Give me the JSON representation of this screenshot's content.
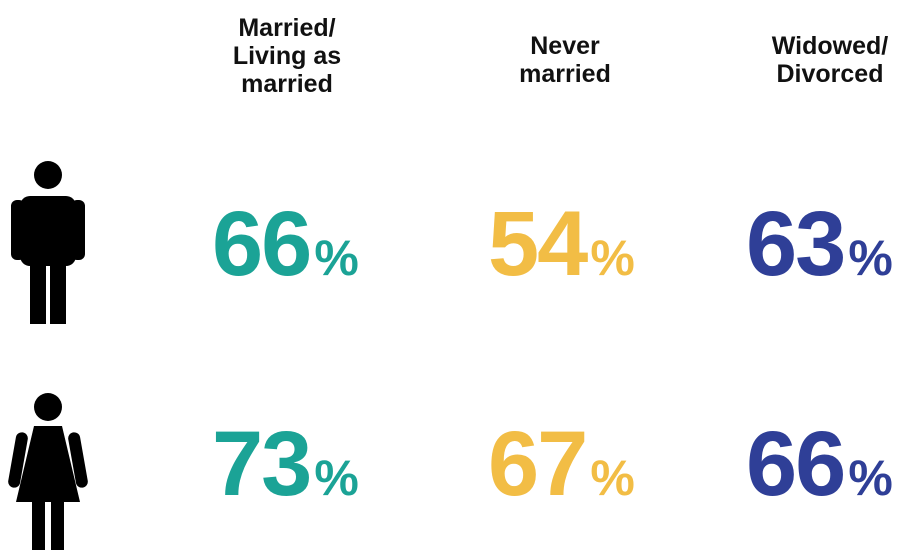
{
  "chart_data": {
    "type": "table",
    "columns": [
      {
        "label": "Married/\nLiving as\nmarried",
        "color": "#1ba396"
      },
      {
        "label": "Never\nmarried",
        "color": "#f2bd45"
      },
      {
        "label": "Widowed/\nDivorced",
        "color": "#2f3f97"
      }
    ],
    "rows": [
      {
        "icon": "man-icon",
        "values": [
          66,
          54,
          63
        ]
      },
      {
        "icon": "woman-icon",
        "values": [
          73,
          67,
          66
        ]
      }
    ],
    "unit": "%"
  }
}
